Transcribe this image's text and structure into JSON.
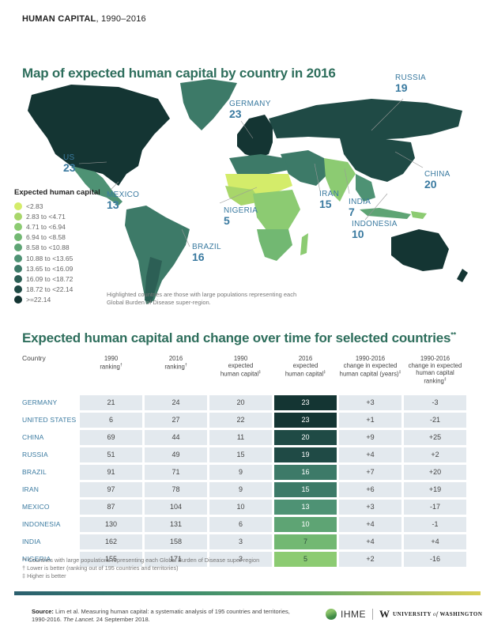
{
  "header": {
    "title_bold": "HUMAN CAPITAL",
    "title_rest": ", 1990–2016"
  },
  "map": {
    "title": "Map of expected human capital by country in 2016",
    "labels": [
      {
        "name": "RUSSIA",
        "value": "19"
      },
      {
        "name": "GERMANY",
        "value": "23"
      },
      {
        "name": "US",
        "value": "23"
      },
      {
        "name": "MEXICO",
        "value": "13"
      },
      {
        "name": "NIGERIA",
        "value": "5"
      },
      {
        "name": "BRAZIL",
        "value": "16"
      },
      {
        "name": "IRAN",
        "value": "15"
      },
      {
        "name": "INDIA",
        "value": "7"
      },
      {
        "name": "INDONESIA",
        "value": "10"
      },
      {
        "name": "CHINA",
        "value": "20"
      }
    ],
    "legend": {
      "title": "Expected human capital",
      "items": [
        {
          "label": "<2.83",
          "color": "#d4ec6a"
        },
        {
          "label": "2.83 to <4.71",
          "color": "#a8d66a"
        },
        {
          "label": "4.71 to <6.94",
          "color": "#8ccb72"
        },
        {
          "label": "6.94 to <8.58",
          "color": "#72b872"
        },
        {
          "label": "8.58 to <10.88",
          "color": "#5ea474"
        },
        {
          "label": "10.88 to <13.65",
          "color": "#4e9274"
        },
        {
          "label": "13.65 to <16.09",
          "color": "#3d7a68"
        },
        {
          "label": "16.09 to <18.72",
          "color": "#2c5f55"
        },
        {
          "label": "18.72 to <22.14",
          "color": "#1f4a45"
        },
        {
          "label": ">=22.14",
          "color": "#143533"
        }
      ]
    },
    "note": "Highlighted countries are those with large populations representing each Global Burden of Disease super-region."
  },
  "table": {
    "title": "Expected human capital and change over time for selected countries",
    "title_mark": "**",
    "headers": [
      {
        "lines": [
          "Country"
        ],
        "mark": ""
      },
      {
        "lines": [
          "1990",
          "ranking"
        ],
        "mark": "†"
      },
      {
        "lines": [
          "2016",
          "ranking"
        ],
        "mark": "†"
      },
      {
        "lines": [
          "1990",
          "expected",
          "human capital"
        ],
        "mark": "‡"
      },
      {
        "lines": [
          "2016",
          "expected",
          "human capital"
        ],
        "mark": "‡"
      },
      {
        "lines": [
          "1990-2016",
          "change in expected",
          "human capital (years)"
        ],
        "mark": "‡"
      },
      {
        "lines": [
          "1990-2016",
          "change in expected",
          "human capital ranking"
        ],
        "mark": "‡"
      }
    ],
    "rows": [
      {
        "country": "GERMANY",
        "rank1990": "21",
        "rank2016": "24",
        "hc1990": "20",
        "hc2016": "23",
        "hc_color": "#143533",
        "change_years": "+3",
        "change_rank": "-3"
      },
      {
        "country": "UNITED STATES",
        "rank1990": "6",
        "rank2016": "27",
        "hc1990": "22",
        "hc2016": "23",
        "hc_color": "#143533",
        "change_years": "+1",
        "change_rank": "-21"
      },
      {
        "country": "CHINA",
        "rank1990": "69",
        "rank2016": "44",
        "hc1990": "11",
        "hc2016": "20",
        "hc_color": "#1f4a45",
        "change_years": "+9",
        "change_rank": "+25"
      },
      {
        "country": "RUSSIA",
        "rank1990": "51",
        "rank2016": "49",
        "hc1990": "15",
        "hc2016": "19",
        "hc_color": "#1f4a45",
        "change_years": "+4",
        "change_rank": "+2"
      },
      {
        "country": "BRAZIL",
        "rank1990": "91",
        "rank2016": "71",
        "hc1990": "9",
        "hc2016": "16",
        "hc_color": "#3d7a68",
        "change_years": "+7",
        "change_rank": "+20"
      },
      {
        "country": "IRAN",
        "rank1990": "97",
        "rank2016": "78",
        "hc1990": "9",
        "hc2016": "15",
        "hc_color": "#3d7a68",
        "change_years": "+6",
        "change_rank": "+19"
      },
      {
        "country": "MEXICO",
        "rank1990": "87",
        "rank2016": "104",
        "hc1990": "10",
        "hc2016": "13",
        "hc_color": "#4e9274",
        "change_years": "+3",
        "change_rank": "-17"
      },
      {
        "country": "INDONESIA",
        "rank1990": "130",
        "rank2016": "131",
        "hc1990": "6",
        "hc2016": "10",
        "hc_color": "#5ea474",
        "change_years": "+4",
        "change_rank": "-1"
      },
      {
        "country": "INDIA",
        "rank1990": "162",
        "rank2016": "158",
        "hc1990": "3",
        "hc2016": "7",
        "hc_color": "#72b872",
        "change_years": "+4",
        "change_rank": "+4"
      },
      {
        "country": "NIGERIA",
        "rank1990": "155",
        "rank2016": "171",
        "hc1990": "3",
        "hc2016": "5",
        "hc_color": "#8ccb72",
        "change_years": "+2",
        "change_rank": "-16"
      }
    ],
    "footnotes": [
      "** Countries with large populations representing each Global Burden of Disease super-region",
      "† Lower is better (ranking out of 195 countries and territories)",
      "‡ Higher is better"
    ]
  },
  "footer": {
    "source_label": "Source:",
    "source_text": " Lim et al. Measuring human capital: a systematic analysis of 195 countries and territories,",
    "source_line2a": "1990-2016. ",
    "source_journal": "The Lancet",
    "source_line2b": ". 24 September 2018.",
    "logo_ihme": "IHME",
    "logo_uw_w": "W",
    "logo_uw_a": "UNIVERSITY ",
    "logo_uw_of": "of",
    "logo_uw_b": " WASHINGTON"
  }
}
